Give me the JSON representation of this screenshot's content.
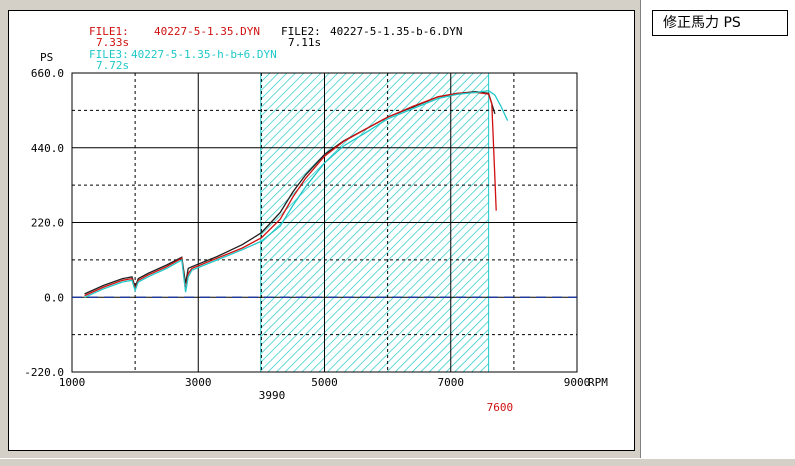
{
  "side_panel": {
    "unit_label": "修正馬力 PS"
  },
  "chart_data": {
    "type": "line",
    "ylabel": "PS",
    "xlabel": "RPM",
    "xlim": [
      1000,
      9000
    ],
    "ylim": [
      -220,
      660
    ],
    "x_ticks": [
      1000,
      3000,
      5000,
      7000,
      9000
    ],
    "y_ticks": [
      660,
      440,
      220,
      0,
      -220
    ],
    "x_tick_labels": [
      "1000",
      "3000",
      "5000",
      "7000",
      "9000"
    ],
    "y_tick_labels": [
      "660.0",
      "440.0",
      "220.0",
      "0.0",
      "-220.0"
    ],
    "grid": true,
    "highlight_band": {
      "x_start": 3990,
      "x_end": 7600,
      "label_start": "3990",
      "label_end": "7600",
      "color": "#00c8c8"
    },
    "legend": [
      {
        "name": "FILE1:",
        "file": "40227-5-1.35.DYN",
        "time": "7.33s",
        "color": "#d01010"
      },
      {
        "name": "FILE2:",
        "file": "40227-5-1.35-b-6.DYN",
        "time": "7.11s",
        "color": "#000000"
      },
      {
        "name": "FILE3:",
        "file": "40227-5-1.35-h-b+6.DYN",
        "time": "7.72s",
        "color": "#20c8c8"
      }
    ],
    "series": [
      {
        "name": "FILE2:",
        "color": "#202020",
        "x": [
          1200,
          1500,
          1800,
          1950,
          2000,
          2050,
          2200,
          2500,
          2740,
          2800,
          2840,
          2900,
          3300,
          3700,
          4000,
          4300,
          4500,
          4700,
          5000,
          5300,
          5700,
          6000,
          6400,
          6800,
          7100,
          7400,
          7600,
          7700
        ],
        "y": [
          10,
          35,
          55,
          60,
          30,
          55,
          70,
          95,
          118,
          40,
          85,
          90,
          120,
          155,
          190,
          250,
          310,
          360,
          420,
          460,
          500,
          530,
          560,
          590,
          600,
          605,
          600,
          540
        ]
      },
      {
        "name": "FILE1:",
        "color": "#d01010",
        "x": [
          1200,
          1500,
          1800,
          1950,
          2000,
          2050,
          2200,
          2500,
          2740,
          2800,
          2840,
          2900,
          3300,
          3700,
          4000,
          4300,
          4500,
          4700,
          5000,
          5300,
          5700,
          6000,
          6400,
          6800,
          7100,
          7400,
          7600,
          7650,
          7700,
          7720
        ],
        "y": [
          5,
          30,
          50,
          55,
          25,
          50,
          65,
          90,
          115,
          20,
          70,
          85,
          115,
          145,
          175,
          230,
          295,
          350,
          415,
          458,
          500,
          530,
          562,
          590,
          600,
          603,
          598,
          570,
          350,
          255
        ]
      },
      {
        "name": "FILE3:",
        "color": "#20c8c8",
        "x": [
          1200,
          1500,
          1800,
          1950,
          2000,
          2050,
          2200,
          2500,
          2740,
          2800,
          2840,
          2900,
          3300,
          3700,
          4000,
          4300,
          4500,
          4700,
          5000,
          5300,
          5700,
          6000,
          6400,
          6800,
          7100,
          7400,
          7600,
          7700,
          7800,
          7900
        ],
        "y": [
          0,
          25,
          45,
          50,
          20,
          45,
          60,
          85,
          110,
          15,
          60,
          80,
          110,
          140,
          165,
          210,
          270,
          325,
          395,
          445,
          490,
          525,
          555,
          585,
          597,
          603,
          608,
          595,
          560,
          520
        ]
      }
    ]
  }
}
